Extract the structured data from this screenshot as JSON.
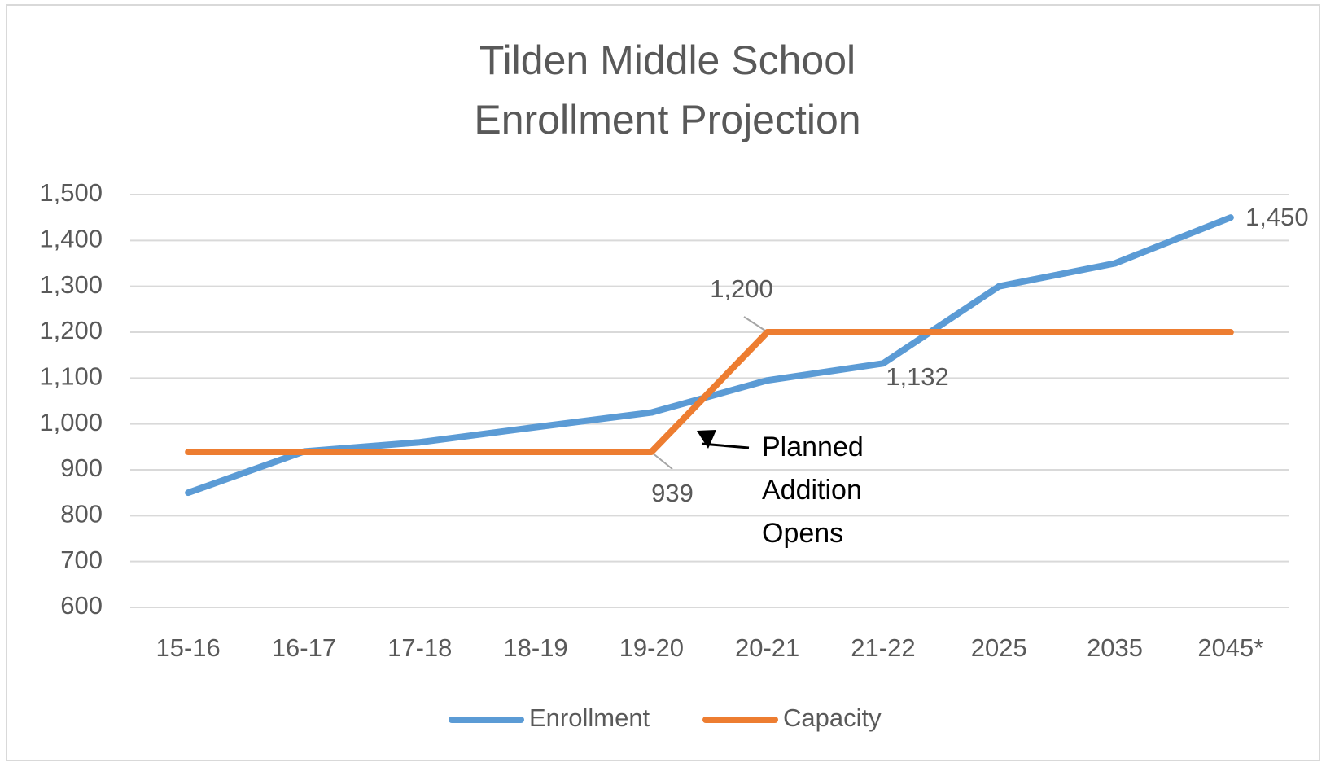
{
  "chart_data": {
    "type": "line",
    "title": [
      "Tilden Middle School",
      "Enrollment Projection"
    ],
    "categories": [
      "15-16",
      "16-17",
      "17-18",
      "18-19",
      "19-20",
      "20-21",
      "21-22",
      "2025",
      "2035",
      "2045*"
    ],
    "series": [
      {
        "name": "Enrollment",
        "color": "#5b9bd5",
        "values": [
          850,
          940,
          960,
          993,
          1025,
          1095,
          1132,
          1300,
          1350,
          1450
        ],
        "value_labels": [
          null,
          null,
          null,
          null,
          null,
          null,
          "1,132",
          null,
          null,
          "1,450"
        ]
      },
      {
        "name": "Capacity",
        "color": "#ed7d31",
        "values": [
          939,
          939,
          939,
          939,
          939,
          1200,
          1200,
          1200,
          1200,
          1200
        ],
        "value_labels": [
          null,
          null,
          null,
          null,
          "939",
          "1,200",
          null,
          null,
          null,
          null
        ]
      }
    ],
    "ylim": [
      600,
      1500
    ],
    "yticks": [
      {
        "value": 600,
        "label": "600"
      },
      {
        "value": 700,
        "label": "700"
      },
      {
        "value": 800,
        "label": "800"
      },
      {
        "value": 900,
        "label": "900"
      },
      {
        "value": 1000,
        "label": "1,000"
      },
      {
        "value": 1100,
        "label": "1,100"
      },
      {
        "value": 1200,
        "label": "1,200"
      },
      {
        "value": 1300,
        "label": "1,300"
      },
      {
        "value": 1400,
        "label": "1,400"
      },
      {
        "value": 1500,
        "label": "1,500"
      }
    ],
    "grid": true,
    "legend": "bottom",
    "annotation": [
      "Planned",
      "Addition",
      "Opens"
    ]
  }
}
